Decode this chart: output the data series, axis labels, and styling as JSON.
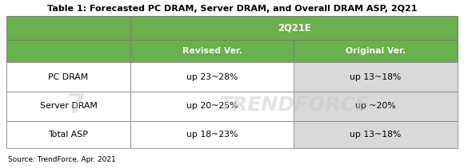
{
  "title": "Table 1: Forecasted PC DRAM, Server DRAM, and Overall DRAM ASP, 2Q21",
  "source": "Source: TrendForce, Apr. 2021",
  "header_main": "2Q21E",
  "col_headers": [
    "Revised Ver.",
    "Original Ver."
  ],
  "row_labels": [
    "PC DRAM",
    "Server DRAM",
    "Total ASP"
  ],
  "revised_values": [
    "up 23~28%",
    "up 20~25%",
    "up 18~23%"
  ],
  "original_values": [
    "up 13~18%",
    "up ~20%",
    "up 13~18%"
  ],
  "green_color": "#6ab04c",
  "light_gray": "#d9d9d9",
  "white": "#ffffff",
  "border_color": "#888888",
  "title_fontsize": 8.0,
  "header_fontsize": 7.8,
  "cell_fontsize": 7.8,
  "source_fontsize": 6.5,
  "watermark_text": "TRENDFORCE",
  "watermark_color": "#c8c8c8",
  "watermark_alpha": 0.5,
  "fig_width": 5.9,
  "fig_height": 2.11,
  "dpi": 100
}
